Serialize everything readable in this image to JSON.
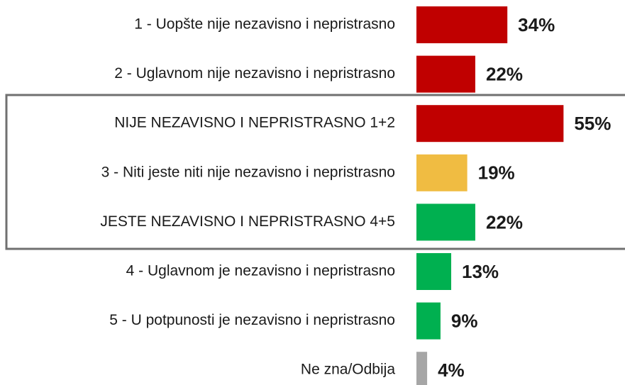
{
  "chart_data": {
    "type": "bar",
    "orientation": "horizontal",
    "categories": [
      "1 - Uopšte nije nezavisno i nepristrasno",
      "2 - Uglavnom nije nezavisno i nepristrasno",
      "NIJE NEZAVISNO I NEPRISTRASNO 1+2",
      "3 - Niti jeste niti nije nezavisno i nepristrasno",
      "JESTE NEZAVISNO I NEPRISTRASNO 4+5",
      "4 - Uglavnom je nezavisno i nepristrasno",
      "5 - U potpunosti je nezavisno i nepristrasno",
      "Ne zna/Odbija"
    ],
    "values": [
      34,
      22,
      55,
      19,
      22,
      13,
      9,
      4
    ],
    "value_labels": [
      "34%",
      "22%",
      "55%",
      "19%",
      "22%",
      "13%",
      "9%",
      "4%"
    ],
    "colors": [
      "#c00000",
      "#c00000",
      "#c00000",
      "#f0bc42",
      "#00b050",
      "#00b050",
      "#00b050",
      "#a6a6a6"
    ]
  }
}
